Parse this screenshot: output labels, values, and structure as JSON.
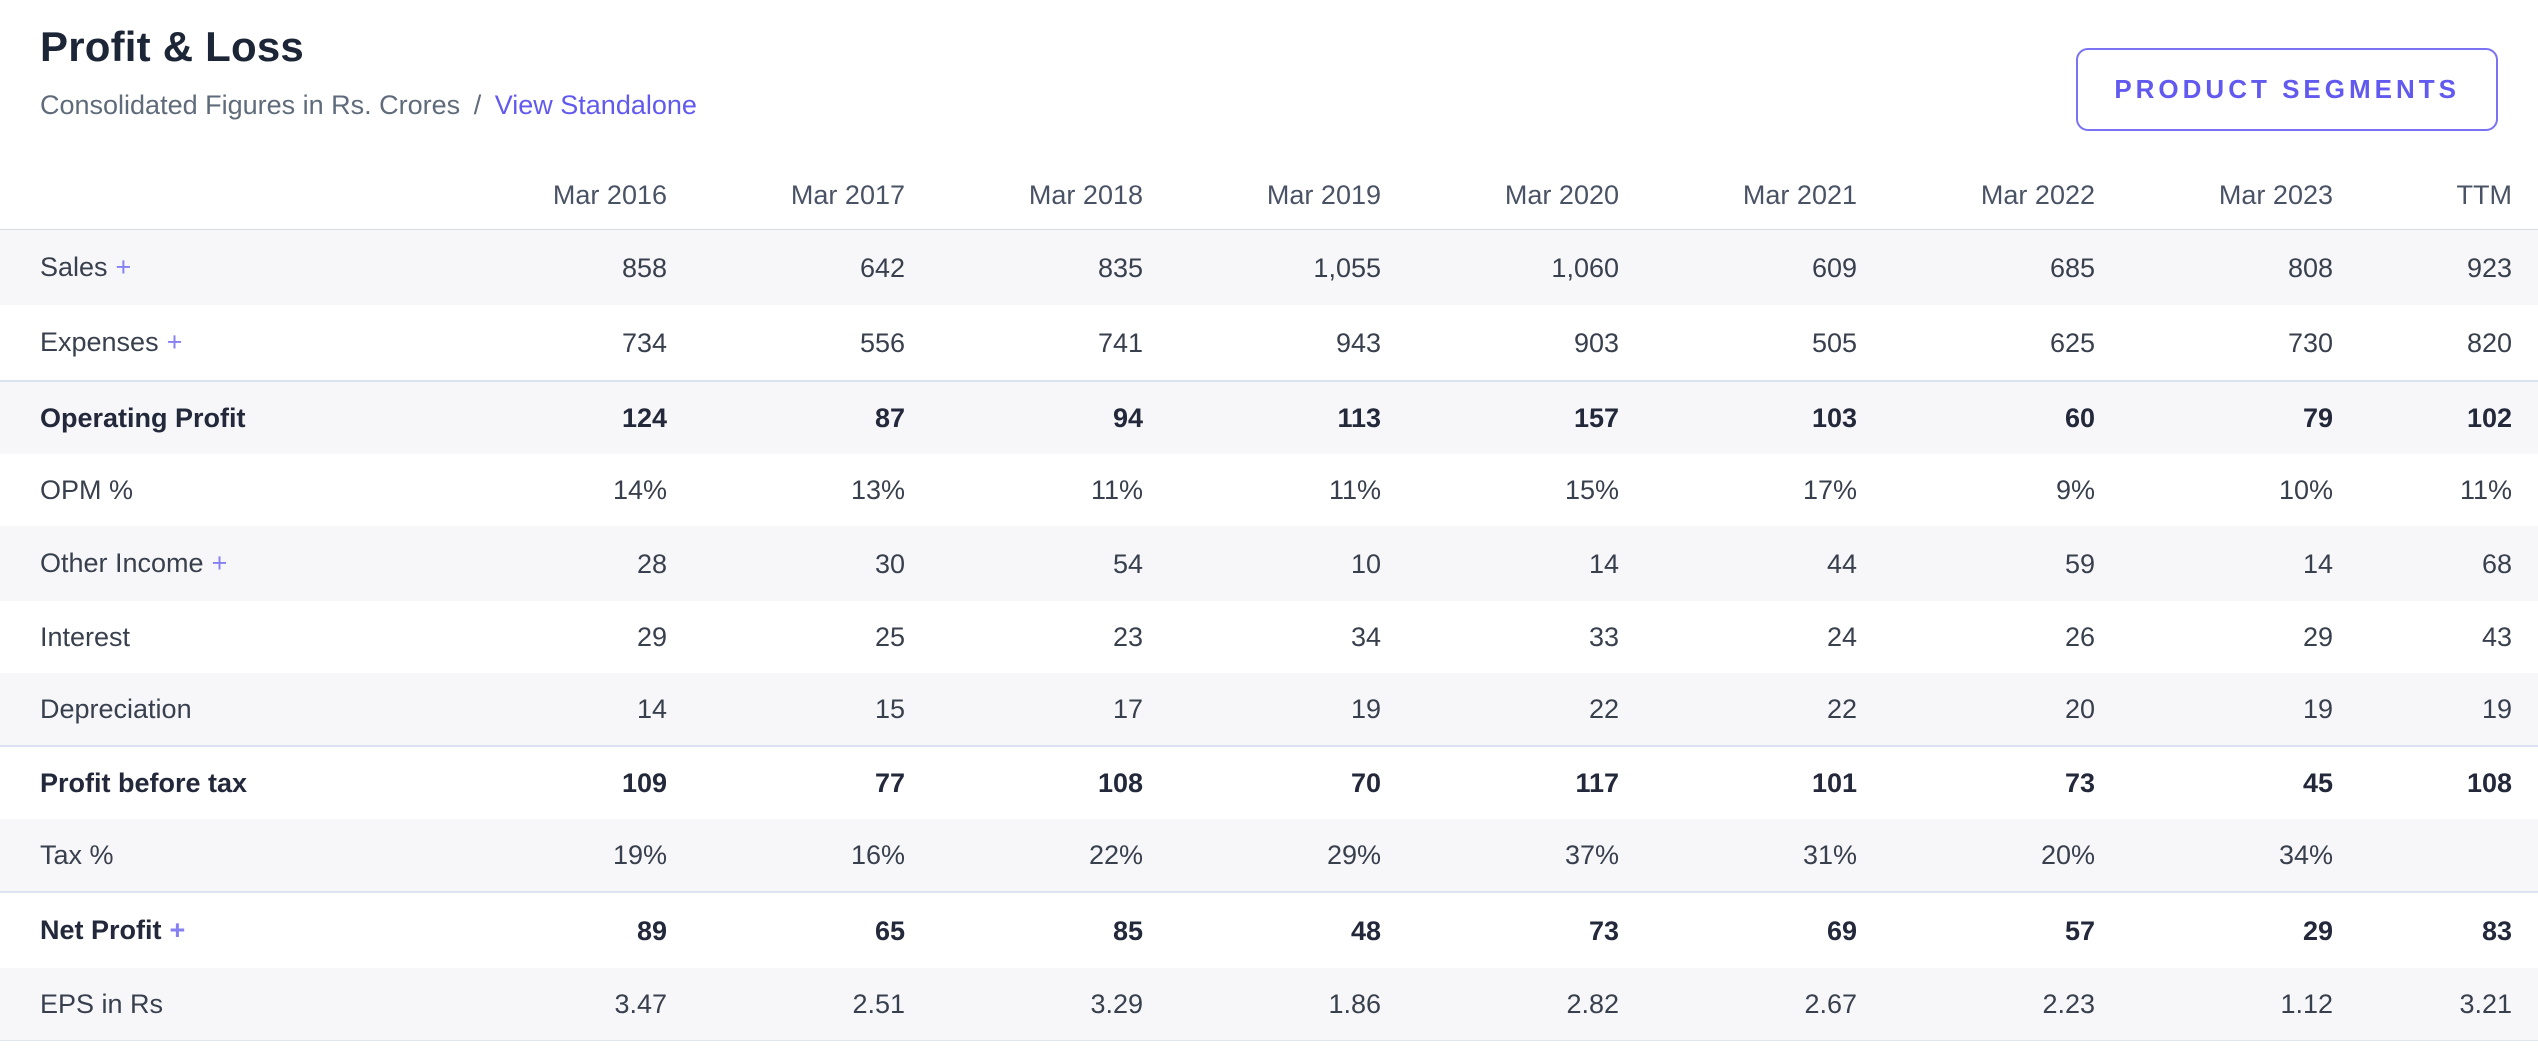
{
  "header": {
    "title": "Profit & Loss",
    "subtitle_prefix": "Consolidated Figures in Rs. Crores",
    "subtitle_separator": "/",
    "standalone_link": "View Standalone",
    "segments_button": "PRODUCT SEGMENTS"
  },
  "colors": {
    "accent_purple": "#625aef",
    "plus_purple": "#8680f3",
    "row_stripe": "#f7f7fa",
    "strong_divider": "#dde2f1",
    "title_text": "#1c2637",
    "body_text": "#39404d"
  },
  "table": {
    "expand_symbol": "+",
    "columns": [
      "Mar 2016",
      "Mar 2017",
      "Mar 2018",
      "Mar 2019",
      "Mar 2020",
      "Mar 2021",
      "Mar 2022",
      "Mar 2023",
      "TTM"
    ],
    "rows": [
      {
        "label": "Sales",
        "expandable": true,
        "bold": false,
        "strong": false,
        "values": [
          "858",
          "642",
          "835",
          "1,055",
          "1,060",
          "609",
          "685",
          "808",
          "923"
        ]
      },
      {
        "label": "Expenses",
        "expandable": true,
        "bold": false,
        "strong": false,
        "values": [
          "734",
          "556",
          "741",
          "943",
          "903",
          "505",
          "625",
          "730",
          "820"
        ]
      },
      {
        "label": "Operating Profit",
        "expandable": false,
        "bold": true,
        "strong": true,
        "values": [
          "124",
          "87",
          "94",
          "113",
          "157",
          "103",
          "60",
          "79",
          "102"
        ]
      },
      {
        "label": "OPM %",
        "expandable": false,
        "bold": false,
        "strong": false,
        "values": [
          "14%",
          "13%",
          "11%",
          "11%",
          "15%",
          "17%",
          "9%",
          "10%",
          "11%"
        ]
      },
      {
        "label": "Other Income",
        "expandable": true,
        "bold": false,
        "strong": false,
        "values": [
          "28",
          "30",
          "54",
          "10",
          "14",
          "44",
          "59",
          "14",
          "68"
        ]
      },
      {
        "label": "Interest",
        "expandable": false,
        "bold": false,
        "strong": false,
        "values": [
          "29",
          "25",
          "23",
          "34",
          "33",
          "24",
          "26",
          "29",
          "43"
        ]
      },
      {
        "label": "Depreciation",
        "expandable": false,
        "bold": false,
        "strong": false,
        "values": [
          "14",
          "15",
          "17",
          "19",
          "22",
          "22",
          "20",
          "19",
          "19"
        ]
      },
      {
        "label": "Profit before tax",
        "expandable": false,
        "bold": true,
        "strong": true,
        "values": [
          "109",
          "77",
          "108",
          "70",
          "117",
          "101",
          "73",
          "45",
          "108"
        ]
      },
      {
        "label": "Tax %",
        "expandable": false,
        "bold": false,
        "strong": false,
        "values": [
          "19%",
          "16%",
          "22%",
          "29%",
          "37%",
          "31%",
          "20%",
          "34%",
          ""
        ]
      },
      {
        "label": "Net Profit",
        "expandable": true,
        "bold": true,
        "strong": true,
        "values": [
          "89",
          "65",
          "85",
          "48",
          "73",
          "69",
          "57",
          "29",
          "83"
        ]
      },
      {
        "label": "EPS in Rs",
        "expandable": false,
        "bold": false,
        "strong": false,
        "values": [
          "3.47",
          "2.51",
          "3.29",
          "1.86",
          "2.82",
          "2.67",
          "2.23",
          "1.12",
          "3.21"
        ]
      }
    ]
  }
}
